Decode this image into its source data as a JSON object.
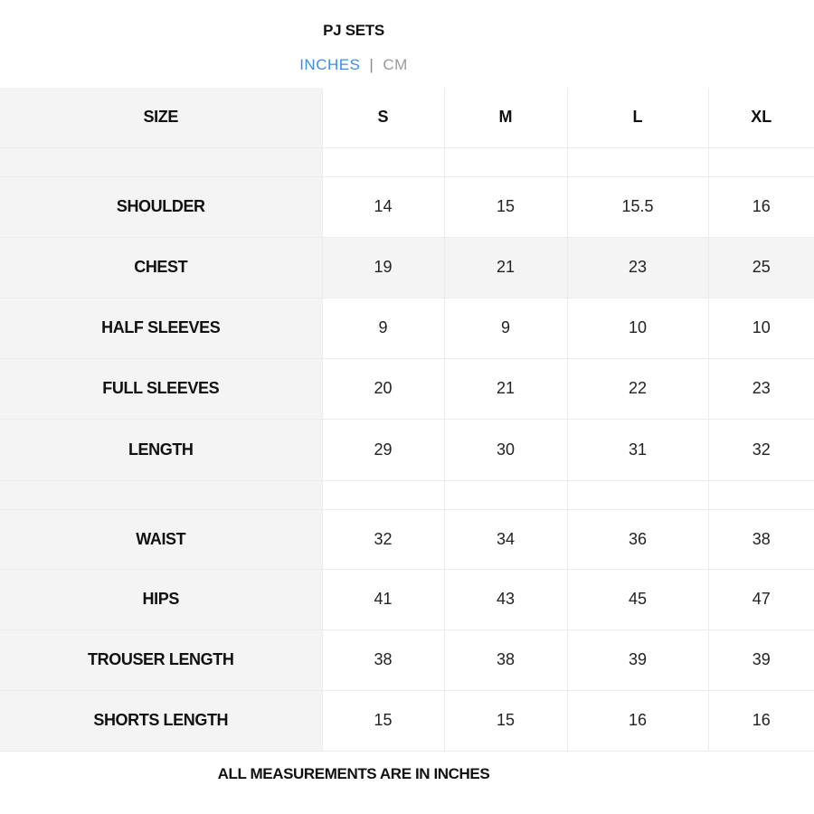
{
  "title": "PJ SETS",
  "units": {
    "inches": "INCHES",
    "separator": "|",
    "cm": "CM",
    "selected": "INCHES",
    "active_color": "#3b8ee8"
  },
  "table": {
    "header": [
      "SIZE",
      "S",
      "M",
      "L",
      "XL"
    ],
    "rows": [
      {
        "label": "",
        "values": [
          "",
          "",
          "",
          ""
        ]
      },
      {
        "label": "SHOULDER",
        "values": [
          "14",
          "15",
          "15.5",
          "16"
        ]
      },
      {
        "label": "CHEST",
        "values": [
          "19",
          "21",
          "23",
          "25"
        ]
      },
      {
        "label": "HALF SLEEVES",
        "values": [
          "9",
          "9",
          "10",
          "10"
        ]
      },
      {
        "label": "FULL SLEEVES",
        "values": [
          "20",
          "21",
          "22",
          "23"
        ]
      },
      {
        "label": "LENGTH",
        "values": [
          "29",
          "30",
          "31",
          "32"
        ]
      },
      {
        "label": "",
        "values": [
          "",
          "",
          "",
          ""
        ]
      },
      {
        "label": "WAIST",
        "values": [
          "32",
          "34",
          "36",
          "38"
        ]
      },
      {
        "label": "HIPS",
        "values": [
          "41",
          "43",
          "45",
          "47"
        ]
      },
      {
        "label": "TROUSER LENGTH",
        "values": [
          "38",
          "38",
          "39",
          "39"
        ]
      },
      {
        "label": "SHORTS LENGTH",
        "values": [
          "15",
          "15",
          "16",
          "16"
        ]
      }
    ]
  },
  "footer": "ALL MEASUREMENTS ARE IN INCHES"
}
